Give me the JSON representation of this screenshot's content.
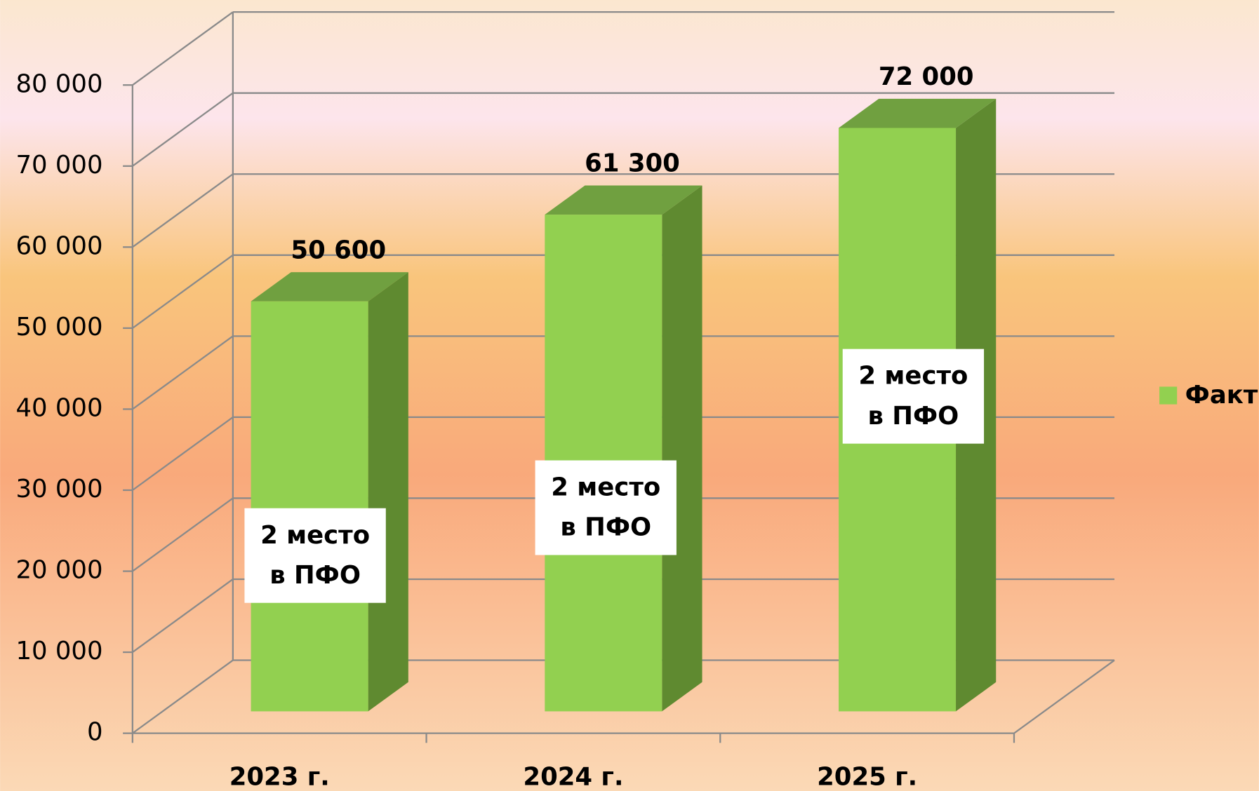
{
  "chart_data": {
    "type": "bar3d",
    "categories": [
      "2023 г.",
      "2024 г.",
      "2025 г."
    ],
    "series": [
      {
        "name": "Факт",
        "color": "#92d050",
        "values": [
          50600,
          61300,
          72000
        ],
        "value_labels": [
          "50 600",
          "61 300",
          "72 000"
        ]
      }
    ],
    "annotations": [
      [
        "2 место",
        "в ПФО"
      ],
      [
        "2 место",
        "в ПФО"
      ],
      [
        "2 место",
        "в ПФО"
      ]
    ],
    "ylim": [
      0,
      80000
    ],
    "yticks": [
      0,
      {
        "value": 10000,
        "label": "10 000"
      },
      {
        "value": 20000,
        "label": "20 000"
      },
      {
        "value": 30000,
        "label": "30 000"
      },
      {
        "value": 40000,
        "label": "40 000"
      },
      {
        "value": 50000,
        "label": "50 000"
      },
      {
        "value": 60000,
        "label": "60 000"
      },
      {
        "value": 70000,
        "label": "70 000"
      },
      {
        "value": 80000,
        "label": "80 000"
      }
    ],
    "grid": true,
    "legend": "right"
  }
}
